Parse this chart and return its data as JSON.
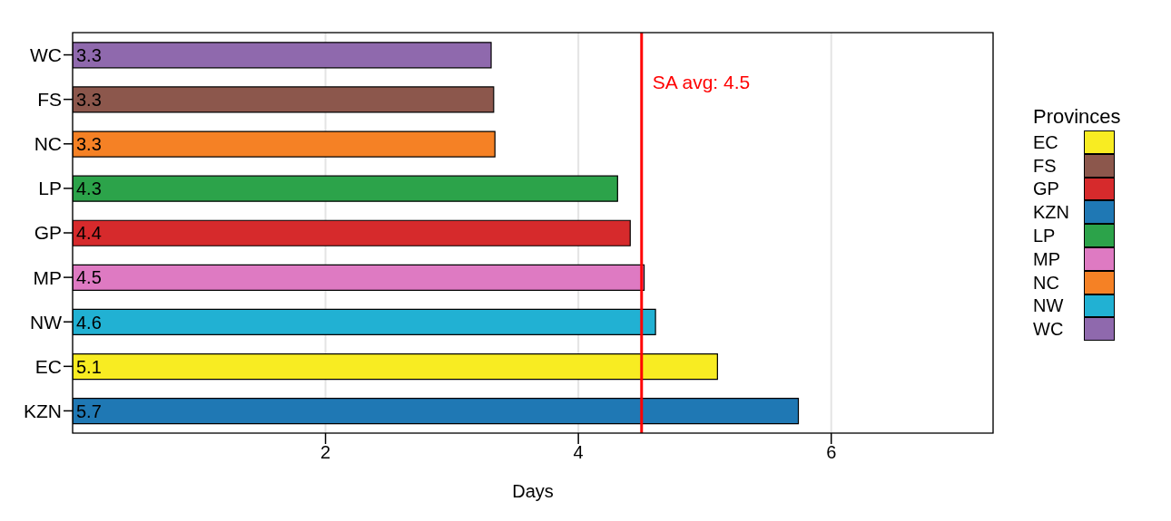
{
  "chart_data": {
    "type": "bar",
    "orientation": "horizontal",
    "stacked": true,
    "xlabel": "Days",
    "legend_title": "Provinces",
    "legend": "right",
    "grid": "x",
    "categories": [
      "WC",
      "FS",
      "NC",
      "LP",
      "GP",
      "MP",
      "NW",
      "EC",
      "KZN"
    ],
    "xlim": [
      0,
      7.28
    ],
    "xticks": [
      2,
      4,
      6
    ],
    "series": [
      {
        "name": "EC",
        "color": "#f8ec22",
        "values": [
          null,
          null,
          null,
          null,
          null,
          null,
          null,
          5.1,
          null
        ],
        "value_labels": [
          null,
          null,
          null,
          null,
          null,
          null,
          null,
          "5.1",
          null
        ]
      },
      {
        "name": "FS",
        "color": "#8c574c",
        "values": [
          null,
          3.33,
          null,
          null,
          null,
          null,
          null,
          null,
          null
        ],
        "value_labels": [
          null,
          "3.3",
          null,
          null,
          null,
          null,
          null,
          null,
          null
        ]
      },
      {
        "name": "GP",
        "color": "#d62a2c",
        "values": [
          null,
          null,
          null,
          null,
          4.41,
          null,
          null,
          null,
          null
        ],
        "value_labels": [
          null,
          null,
          null,
          null,
          "4.4",
          null,
          null,
          null,
          null
        ]
      },
      {
        "name": "KZN",
        "color": "#1f78b4",
        "values": [
          null,
          null,
          null,
          null,
          null,
          null,
          null,
          null,
          5.74
        ],
        "value_labels": [
          null,
          null,
          null,
          null,
          null,
          null,
          null,
          null,
          "5.7"
        ]
      },
      {
        "name": "LP",
        "color": "#2ca34a",
        "values": [
          null,
          null,
          null,
          4.31,
          null,
          null,
          null,
          null,
          null
        ],
        "value_labels": [
          null,
          null,
          null,
          "4.3",
          null,
          null,
          null,
          null,
          null
        ]
      },
      {
        "name": "MP",
        "color": "#de7ac2",
        "values": [
          null,
          null,
          null,
          null,
          null,
          4.52,
          null,
          null,
          null
        ],
        "value_labels": [
          null,
          null,
          null,
          null,
          null,
          "4.5",
          null,
          null,
          null
        ]
      },
      {
        "name": "NC",
        "color": "#f58125",
        "values": [
          null,
          null,
          3.34,
          null,
          null,
          null,
          null,
          null,
          null
        ],
        "value_labels": [
          null,
          null,
          "3.3",
          null,
          null,
          null,
          null,
          null,
          null
        ]
      },
      {
        "name": "NW",
        "color": "#21b1d3",
        "values": [
          null,
          null,
          null,
          null,
          null,
          null,
          4.61,
          null,
          null
        ],
        "value_labels": [
          null,
          null,
          null,
          null,
          null,
          null,
          "4.6",
          null,
          null
        ]
      },
      {
        "name": "WC",
        "color": "#8f69ad",
        "values": [
          3.31,
          null,
          null,
          null,
          null,
          null,
          null,
          null,
          null
        ],
        "value_labels": [
          "3.3",
          null,
          null,
          null,
          null,
          null,
          null,
          null,
          null
        ]
      }
    ],
    "ref_lines": [
      {
        "axis": "x",
        "value": 4.5,
        "label": "SA avg: 4.5",
        "color": "#ff0000"
      }
    ]
  }
}
